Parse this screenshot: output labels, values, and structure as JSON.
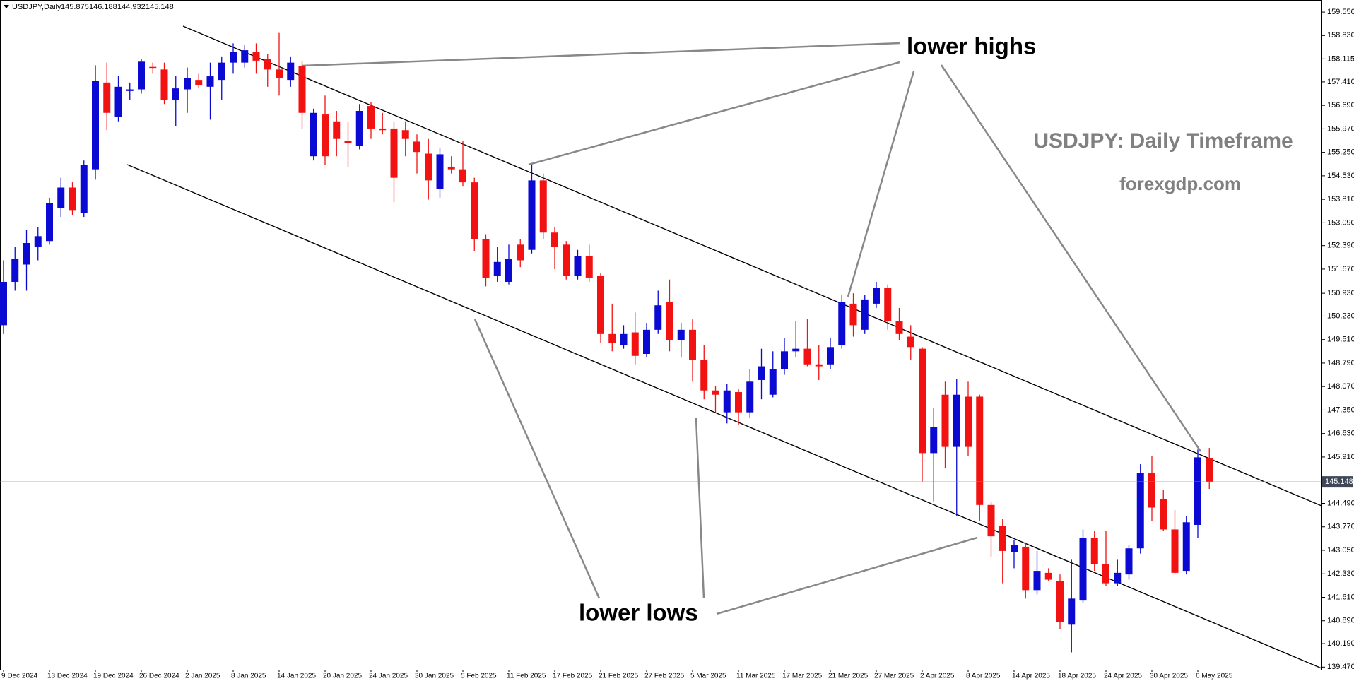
{
  "chart_data": {
    "type": "candlestick",
    "title": "USDJPY,Daily",
    "up_color": "#0a0ad2",
    "down_color": "#f21212",
    "annotations": [
      "lower highs",
      "lower lows"
    ],
    "watermark": "USDJPY: Daily Timeframe",
    "website": "forexgdp.com",
    "categories": [
      "9 Dec 2024",
      null,
      null,
      null,
      "13 Dec 2024",
      null,
      null,
      null,
      "19 Dec 2024",
      null,
      null,
      null,
      "26 Dec 2024",
      null,
      null,
      null,
      "2 Jan 2025",
      null,
      null,
      null,
      "8 Jan 2025",
      null,
      null,
      null,
      "14 Jan 2025",
      null,
      null,
      null,
      "20 Jan 2025",
      null,
      null,
      null,
      "24 Jan 2025",
      null,
      null,
      null,
      "30 Jan 2025",
      null,
      null,
      null,
      "5 Feb 2025",
      null,
      null,
      null,
      "11 Feb 2025",
      null,
      null,
      null,
      "17 Feb 2025",
      null,
      null,
      null,
      "21 Feb 2025",
      null,
      null,
      null,
      "27 Feb 2025",
      null,
      null,
      null,
      "5 Mar 2025",
      null,
      null,
      null,
      "11 Mar 2025",
      null,
      null,
      null,
      "17 Mar 2025",
      null,
      null,
      null,
      "21 Mar 2025",
      null,
      null,
      null,
      "27 Mar 2025",
      null,
      null,
      null,
      "2 Apr 2025",
      null,
      null,
      null,
      "8 Apr 2025",
      null,
      null,
      null,
      "14 Apr 2025",
      null,
      null,
      null,
      "18 Apr 2025",
      null,
      null,
      null,
      "24 Apr 2025",
      null,
      null,
      null,
      "30 Apr 2025",
      null,
      null,
      null,
      "6 May 2025",
      null
    ],
    "open": [
      149.95,
      151.28,
      151.81,
      152.34,
      152.53,
      153.54,
      154.17,
      153.4,
      154.73,
      157.39,
      156.33,
      157.13,
      157.18,
      157.87,
      157.79,
      156.86,
      157.18,
      157.47,
      157.26,
      157.47,
      158.0,
      158.0,
      158.32,
      158.11,
      157.79,
      157.47,
      157.9,
      155.13,
      156.41,
      156.2,
      155.61,
      155.45,
      156.67,
      155.98,
      155.98,
      155.93,
      155.58,
      155.21,
      154.12,
      154.81,
      154.73,
      154.33,
      152.6,
      151.46,
      151.28,
      152.42,
      152.26,
      154.39,
      152.79,
      152.42,
      151.46,
      152.07,
      151.46,
      149.68,
      149.33,
      149.73,
      149.07,
      149.81,
      150.66,
      149.49,
      149.81,
      148.88,
      147.95,
      147.28,
      147.9,
      147.28,
      148.27,
      147.82,
      148.61,
      149.15,
      149.23,
      148.75,
      148.75,
      149.33,
      150.61,
      149.81,
      150.61,
      151.09,
      150.08,
      149.6,
      149.23,
      146.03,
      147.82,
      146.22,
      147.76,
      147.76,
      144.44,
      143.8,
      143.0,
      143.16,
      141.83,
      142.36,
      142.1,
      140.77,
      141.51,
      143.43,
      142.63,
      142.04,
      142.31,
      143.11,
      145.42,
      144.62,
      143.69,
      142.42,
      143.83,
      145.875
    ],
    "high": [
      151.94,
      152.34,
      152.87,
      152.95,
      153.86,
      154.47,
      154.33,
      155.0,
      157.92,
      158.0,
      157.58,
      157.39,
      158.11,
      158.0,
      158.0,
      157.58,
      157.85,
      157.66,
      158.0,
      158.19,
      158.59,
      158.54,
      158.59,
      158.27,
      158.91,
      158.19,
      158.06,
      156.59,
      156.99,
      156.52,
      156.2,
      156.73,
      156.78,
      156.46,
      156.2,
      156.2,
      155.8,
      155.66,
      155.4,
      155.13,
      155.61,
      154.47,
      152.74,
      152.34,
      152.42,
      152.6,
      154.87,
      154.6,
      152.95,
      152.53,
      152.26,
      152.42,
      151.54,
      150.61,
      149.95,
      150.34,
      150.02,
      151.01,
      151.35,
      150.02,
      150.13,
      149.33,
      148.08,
      148.16,
      148.0,
      148.61,
      149.23,
      149.15,
      149.55,
      150.08,
      150.13,
      149.33,
      149.55,
      150.88,
      150.93,
      150.88,
      151.28,
      151.2,
      150.48,
      149.95,
      149.28,
      147.42,
      148.22,
      148.3,
      148.22,
      147.82,
      144.55,
      144.01,
      143.37,
      143.29,
      143.03,
      142.5,
      142.31,
      142.76,
      143.69,
      143.64,
      143.64,
      142.76,
      143.22,
      145.69,
      145.95,
      144.89,
      144.28,
      144.09,
      146.14,
      146.188
    ],
    "low": [
      149.68,
      151.01,
      151.01,
      151.94,
      152.42,
      153.27,
      153.32,
      153.27,
      154.41,
      155.93,
      156.2,
      156.86,
      157.05,
      157.66,
      156.73,
      156.06,
      156.46,
      157.21,
      156.25,
      156.86,
      157.66,
      157.85,
      157.66,
      157.26,
      156.99,
      157.26,
      155.98,
      155.0,
      154.87,
      155.13,
      154.81,
      155.34,
      155.66,
      155.8,
      153.72,
      155.13,
      154.6,
      153.8,
      153.86,
      154.6,
      154.2,
      152.21,
      151.14,
      151.28,
      151.2,
      151.73,
      152.15,
      152.6,
      151.67,
      151.35,
      151.35,
      151.28,
      149.41,
      149.15,
      149.23,
      148.75,
      148.96,
      149.68,
      149.15,
      148.96,
      148.22,
      147.68,
      147.28,
      146.94,
      146.89,
      147.1,
      147.68,
      147.74,
      148.43,
      148.96,
      148.69,
      148.27,
      148.61,
      149.23,
      149.6,
      149.68,
      150.48,
      149.81,
      149.49,
      148.88,
      145.16,
      144.55,
      145.56,
      144.09,
      145.95,
      143.96,
      142.84,
      142.04,
      142.5,
      141.57,
      141.7,
      142.1,
      140.63,
      139.92,
      141.43,
      142.42,
      141.96,
      141.96,
      142.15,
      142.95,
      143.96,
      143.64,
      142.31,
      142.31,
      143.43,
      144.932
    ],
    "close": [
      151.28,
      151.99,
      152.47,
      152.68,
      153.7,
      154.17,
      153.48,
      154.87,
      157.45,
      156.46,
      157.26,
      157.18,
      158.03,
      157.85,
      156.86,
      157.21,
      157.53,
      157.31,
      157.58,
      158.0,
      158.32,
      158.38,
      158.06,
      157.79,
      157.53,
      158.0,
      156.46,
      156.46,
      155.13,
      155.66,
      155.53,
      156.52,
      155.98,
      155.93,
      154.47,
      155.66,
      155.26,
      154.39,
      155.19,
      154.73,
      154.33,
      152.6,
      151.41,
      151.89,
      151.99,
      151.94,
      154.39,
      152.79,
      152.34,
      151.46,
      152.07,
      151.41,
      149.68,
      149.41,
      149.68,
      149.01,
      149.81,
      150.56,
      149.49,
      149.81,
      148.88,
      147.95,
      147.82,
      147.95,
      147.28,
      148.22,
      148.69,
      148.61,
      149.15,
      149.23,
      148.75,
      148.69,
      149.28,
      150.66,
      149.95,
      150.74,
      151.09,
      150.08,
      149.68,
      149.28,
      146.03,
      146.83,
      146.22,
      147.82,
      146.22,
      144.44,
      143.48,
      143.03,
      143.22,
      141.83,
      142.42,
      142.15,
      140.85,
      141.57,
      143.43,
      142.63,
      142.04,
      142.36,
      143.11,
      145.42,
      144.36,
      143.69,
      142.36,
      143.91,
      145.9,
      145.148
    ],
    "ylim": [
      139.39,
      159.92
    ],
    "yticks": [
      {
        "value": 159.55,
        "label": "159.550"
      },
      {
        "value": 158.83,
        "label": "158.830"
      },
      158.115,
      {
        "value": 157.41,
        "label": "157.410"
      },
      {
        "value": 156.69,
        "label": "156.690"
      },
      {
        "value": 155.97,
        "label": "155.970"
      },
      {
        "value": 155.25,
        "label": "155.250"
      },
      {
        "value": 154.53,
        "label": "154.530"
      },
      {
        "value": 153.81,
        "label": "153.810"
      },
      {
        "value": 153.09,
        "label": "153.090"
      },
      {
        "value": 152.39,
        "label": "152.390"
      },
      {
        "value": 151.67,
        "label": "151.670"
      },
      {
        "value": 150.93,
        "label": "150.930"
      },
      {
        "value": 150.23,
        "label": "150.230"
      },
      {
        "value": 149.51,
        "label": "149.510"
      },
      {
        "value": 148.79,
        "label": "148.790"
      },
      {
        "value": 148.07,
        "label": "148.070"
      },
      {
        "value": 147.35,
        "label": "147.350"
      },
      {
        "value": 146.63,
        "label": "146.630"
      },
      {
        "value": 145.91,
        "label": "145.910"
      },
      {
        "value": 144.49,
        "label": "144.490"
      },
      {
        "value": 143.77,
        "label": "143.770"
      },
      {
        "value": 143.05,
        "label": "143.050"
      },
      {
        "value": 142.33,
        "label": "142.330"
      },
      {
        "value": 141.61,
        "label": "141.610"
      },
      {
        "value": 140.89,
        "label": "140.890"
      },
      {
        "value": 140.19,
        "label": "140.190"
      },
      {
        "value": 139.47,
        "label": "139.470"
      }
    ]
  }
}
